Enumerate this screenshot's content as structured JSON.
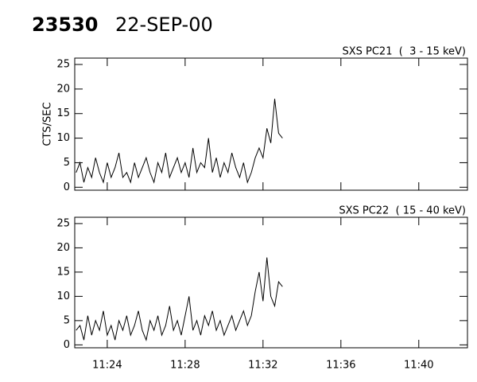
{
  "header": {
    "id": "23530",
    "date": "22-SEP-00"
  },
  "chart_data": [
    {
      "type": "line",
      "title": "SXS PC21  (  3 - 15 keV)",
      "y_label": "CTS/SEC",
      "color": "#000000",
      "x": [
        682.4,
        682.6,
        682.8,
        683.0,
        683.2,
        683.4,
        683.6,
        683.8,
        684.0,
        684.2,
        684.4,
        684.6,
        684.8,
        685.0,
        685.2,
        685.4,
        685.6,
        685.8,
        686.0,
        686.2,
        686.4,
        686.6,
        686.8,
        687.0,
        687.2,
        687.4,
        687.6,
        687.8,
        688.0,
        688.2,
        688.4,
        688.6,
        688.8,
        689.0,
        689.2,
        689.4,
        689.6,
        689.8,
        690.0,
        690.2,
        690.4,
        690.6,
        690.8,
        691.0,
        691.2,
        691.4,
        691.6,
        691.8,
        692.0,
        692.2,
        692.4,
        692.6,
        692.8,
        693.0
      ],
      "values": [
        3,
        5,
        1,
        4,
        2,
        6,
        3,
        1,
        5,
        2,
        4,
        7,
        2,
        3,
        1,
        5,
        2,
        4,
        6,
        3,
        1,
        5,
        3,
        7,
        2,
        4,
        6,
        3,
        5,
        2,
        8,
        3,
        5,
        4,
        10,
        3,
        6,
        2,
        5,
        3,
        7,
        4,
        2,
        5,
        1,
        3,
        6,
        8,
        6,
        12,
        9,
        18,
        11,
        10
      ],
      "xlim": [
        682.33,
        702.5
      ],
      "xticks": [
        {
          "value": 684,
          "label": "11:24"
        },
        {
          "value": 688,
          "label": "11:28"
        },
        {
          "value": 692,
          "label": "11:32"
        },
        {
          "value": 696,
          "label": "11:36"
        },
        {
          "value": 700,
          "label": "11:40"
        }
      ],
      "ylim": [
        -0.6,
        26.3
      ],
      "yticks": [
        0,
        5,
        10,
        15,
        20,
        25
      ]
    },
    {
      "type": "line",
      "title": "SXS PC22  ( 15 - 40 keV)",
      "color": "#000000",
      "x": [
        682.4,
        682.6,
        682.8,
        683.0,
        683.2,
        683.4,
        683.6,
        683.8,
        684.0,
        684.2,
        684.4,
        684.6,
        684.8,
        685.0,
        685.2,
        685.4,
        685.6,
        685.8,
        686.0,
        686.2,
        686.4,
        686.6,
        686.8,
        687.0,
        687.2,
        687.4,
        687.6,
        687.8,
        688.0,
        688.2,
        688.4,
        688.6,
        688.8,
        689.0,
        689.2,
        689.4,
        689.6,
        689.8,
        690.0,
        690.2,
        690.4,
        690.6,
        690.8,
        691.0,
        691.2,
        691.4,
        691.6,
        691.8,
        692.0,
        692.2,
        692.4,
        692.6,
        692.8,
        693.0
      ],
      "values": [
        3,
        4,
        1,
        6,
        2,
        5,
        3,
        7,
        2,
        4,
        1,
        5,
        3,
        6,
        2,
        4,
        7,
        3,
        1,
        5,
        3,
        6,
        2,
        4,
        8,
        3,
        5,
        2,
        6,
        10,
        3,
        5,
        2,
        6,
        4,
        7,
        3,
        5,
        2,
        4,
        6,
        3,
        5,
        7,
        4,
        6,
        11,
        15,
        9,
        18,
        10,
        8,
        13,
        12
      ],
      "xlim": [
        682.33,
        702.5
      ],
      "xticks": [
        {
          "value": 684,
          "label": "11:24"
        },
        {
          "value": 688,
          "label": "11:28"
        },
        {
          "value": 692,
          "label": "11:32"
        },
        {
          "value": 696,
          "label": "11:36"
        },
        {
          "value": 700,
          "label": "11:40"
        }
      ],
      "ylim": [
        -0.6,
        26.3
      ],
      "yticks": [
        0,
        5,
        10,
        15,
        20,
        25
      ]
    }
  ]
}
